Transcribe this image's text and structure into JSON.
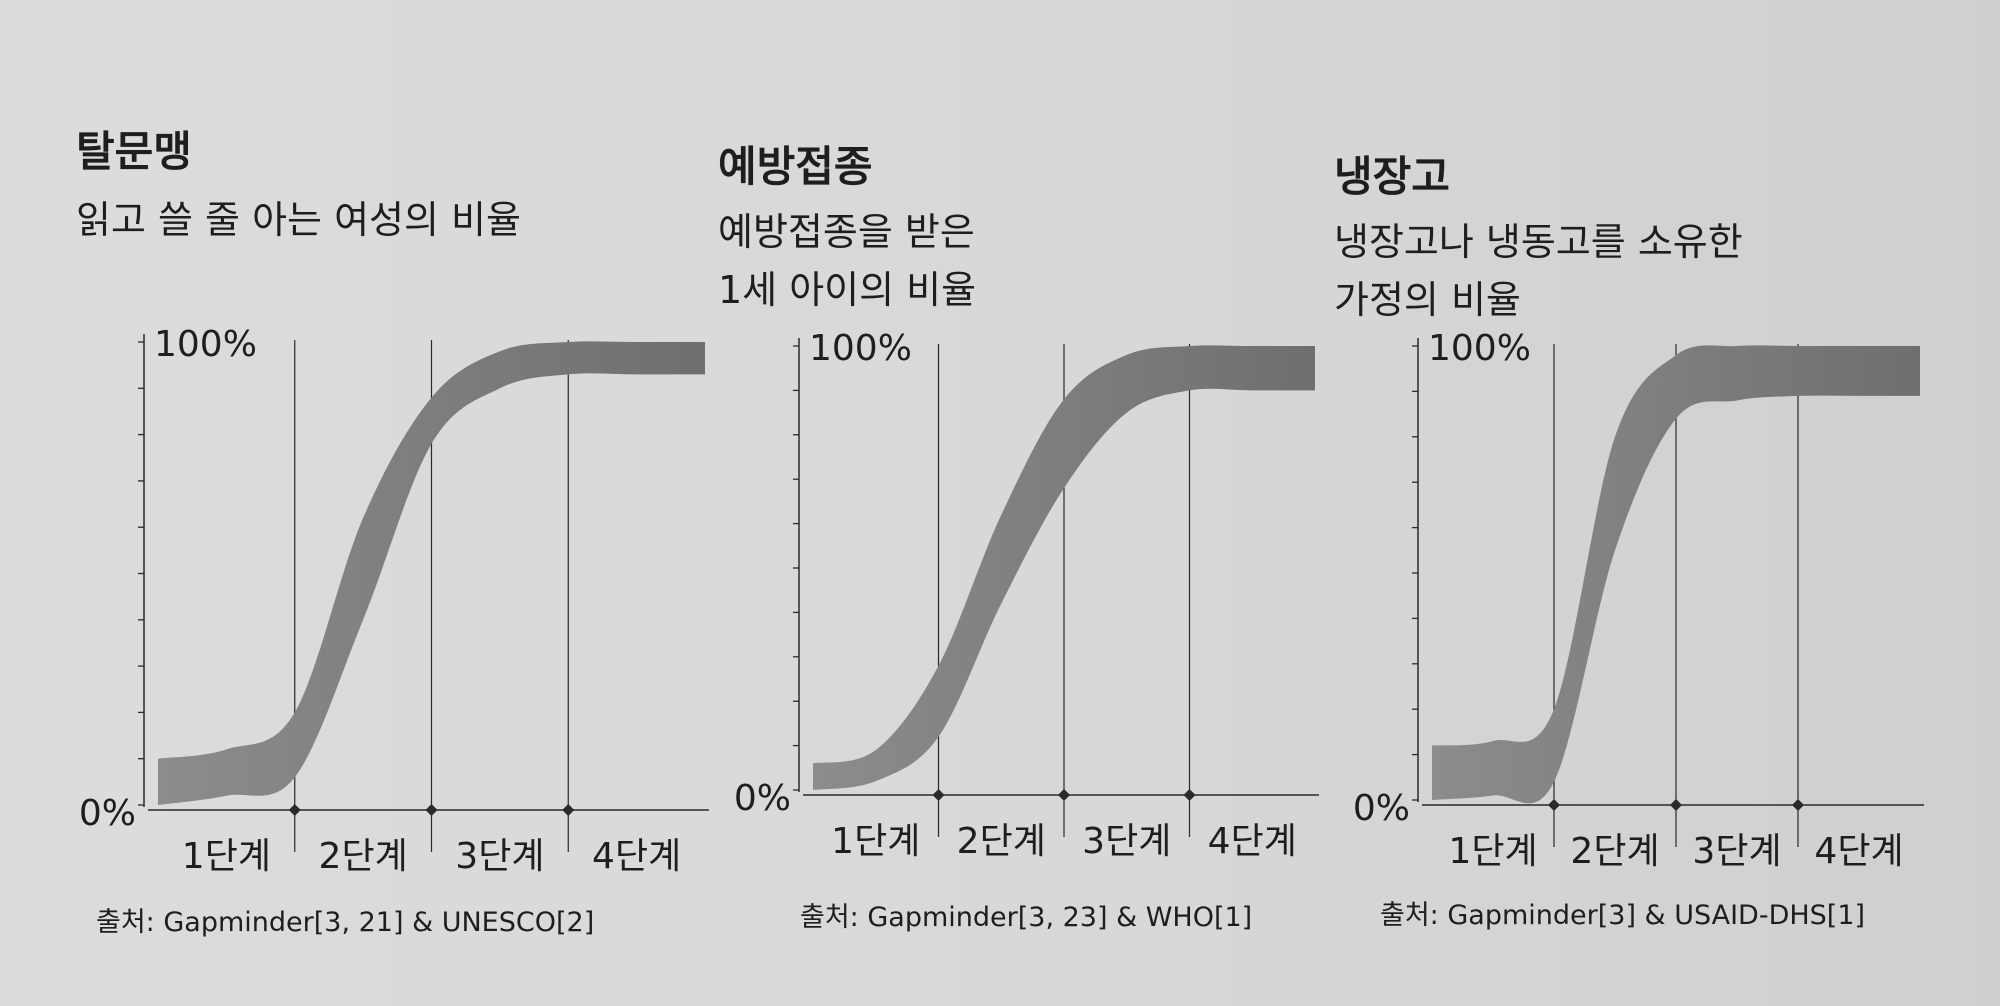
{
  "colors": {
    "background": "#d9d9d7",
    "band": "#8c8c8c",
    "band_right": "#6f6f6f",
    "axis": "#2a2a2a"
  },
  "panels": [
    {
      "title": "탈문맹",
      "subtitle_lines": [
        "읽고 쓸 줄 아는 여성의 비율"
      ],
      "source": "출처: Gapminder[3, 21] & UNESCO[2]"
    },
    {
      "title": "예방접종",
      "subtitle_lines": [
        "예방접종을 받은",
        "1세 아이의 비율"
      ],
      "source": "출처: Gapminder[3, 23] & WHO[1]"
    },
    {
      "title": "냉장고",
      "subtitle_lines": [
        "냉장고나 냉동고를 소유한",
        "가정의 비율"
      ],
      "source": "출처: Gapminder[3] & USAID-DHS[1]"
    }
  ],
  "chart_data": [
    {
      "type": "area",
      "title": "탈문맹",
      "categories": [
        "1단계",
        "2단계",
        "3단계",
        "4단계"
      ],
      "ylim": [
        0,
        100
      ],
      "ytick_labels": [
        "0%",
        "100%"
      ],
      "grid": "vertical lines at stage boundaries",
      "series": [
        {
          "x": [
            0.0,
            0.5,
            1.0,
            1.5,
            2.0,
            2.5,
            3.0,
            3.5,
            4.0
          ],
          "lower": [
            0,
            2,
            6,
            40,
            78,
            90,
            93,
            93,
            93
          ],
          "upper": [
            10,
            12,
            20,
            62,
            88,
            98,
            100,
            100,
            100
          ]
        }
      ]
    },
    {
      "type": "area",
      "title": "예방접종",
      "categories": [
        "1단계",
        "2단계",
        "3단계",
        "4단계"
      ],
      "ylim": [
        0,
        100
      ],
      "ytick_labels": [
        "0%",
        "100%"
      ],
      "grid": "vertical lines at stage boundaries",
      "series": [
        {
          "x": [
            0.0,
            0.5,
            1.0,
            1.5,
            2.0,
            2.5,
            3.0,
            3.5,
            4.0
          ],
          "lower": [
            0,
            2,
            12,
            42,
            68,
            85,
            90,
            90,
            90
          ],
          "upper": [
            6,
            9,
            28,
            62,
            88,
            98,
            100,
            100,
            100
          ]
        }
      ]
    },
    {
      "type": "area",
      "title": "냉장고",
      "categories": [
        "1단계",
        "2단계",
        "3단계",
        "4단계"
      ],
      "ylim": [
        0,
        100
      ],
      "ytick_labels": [
        "0%",
        "100%"
      ],
      "grid": "vertical lines at stage boundaries",
      "series": [
        {
          "x": [
            0.0,
            0.5,
            1.0,
            1.5,
            2.0,
            2.5,
            3.0,
            3.5,
            4.0
          ],
          "lower": [
            0,
            1,
            4,
            55,
            84,
            88,
            89,
            89,
            89
          ],
          "upper": [
            12,
            13,
            20,
            80,
            98,
            100,
            100,
            100,
            100
          ]
        }
      ]
    }
  ]
}
